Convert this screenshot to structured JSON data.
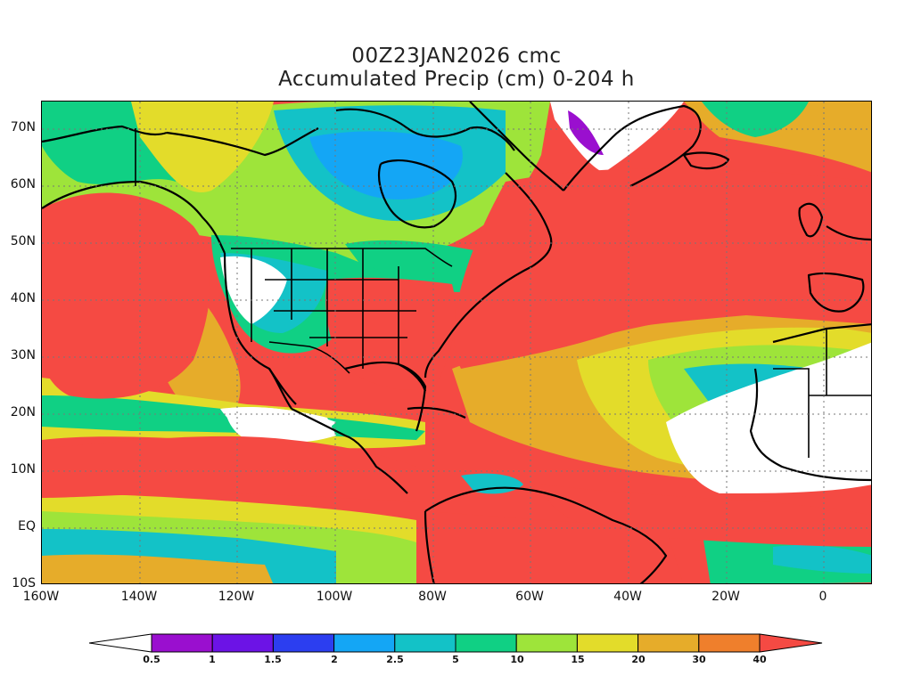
{
  "header": {
    "line1": "00Z23JAN2026 cmc",
    "line2": "Accumulated Precip (cm) 0-204 h"
  },
  "axes": {
    "lat_labels": [
      "70N",
      "60N",
      "50N",
      "40N",
      "30N",
      "20N",
      "10N",
      "EQ",
      "10S"
    ],
    "lon_labels": [
      "160W",
      "140W",
      "120W",
      "100W",
      "80W",
      "60W",
      "40W",
      "20W",
      "0"
    ]
  },
  "colorbar": {
    "labels": [
      "0.5",
      "1",
      "1.5",
      "2",
      "2.5",
      "5",
      "10",
      "15",
      "20",
      "30",
      "40"
    ],
    "colors": [
      "#ffffff",
      "#9a0fcf",
      "#6c13e6",
      "#2c3ef0",
      "#14a6f5",
      "#13c2c7",
      "#10d084",
      "#9ee43a",
      "#e3dc2a",
      "#e6ac2a",
      "#ef7f2c",
      "#f54a43"
    ]
  },
  "map": {
    "lon_range": [
      -160,
      10
    ],
    "lat_range": [
      -10,
      75
    ],
    "base_fill_color": "#f54a43",
    "projection": "cylindrical equidistant"
  }
}
